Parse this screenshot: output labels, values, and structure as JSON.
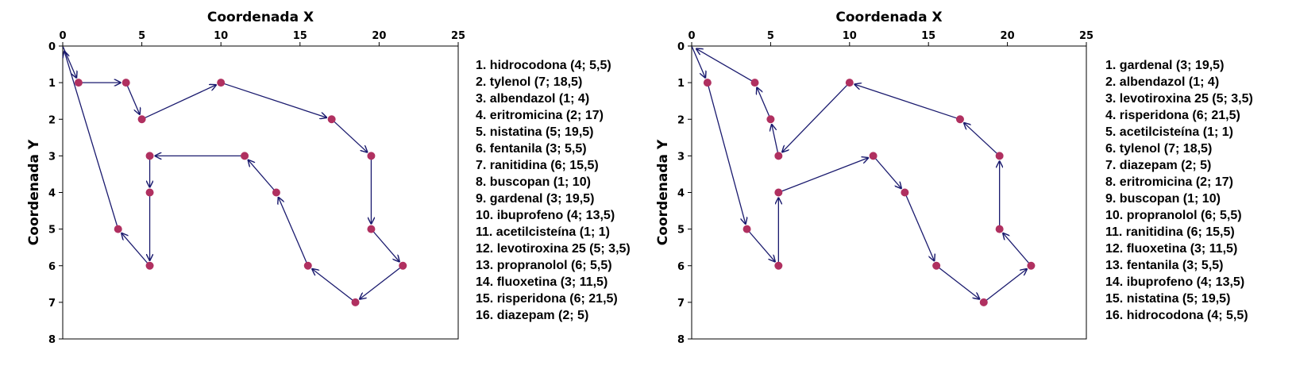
{
  "chart_data": [
    {
      "type": "line",
      "xlabel": "Coordenada X",
      "ylabel": "Coordenada Y",
      "xlim": [
        0,
        25
      ],
      "ylim": [
        8,
        0
      ],
      "x_axis_position": "top",
      "y_inverted": true,
      "grid": false,
      "xticks": [
        0,
        5,
        10,
        15,
        20,
        25
      ],
      "yticks": [
        0,
        1,
        2,
        3,
        4,
        5,
        6,
        7,
        8
      ],
      "point_color": "#b03060",
      "arrow_color": "#1a1a6e",
      "route": [
        [
          0,
          0
        ],
        [
          1,
          1
        ],
        [
          4,
          1
        ],
        [
          5,
          2
        ],
        [
          10,
          1
        ],
        [
          17,
          2
        ],
        [
          19.5,
          3
        ],
        [
          19.5,
          5
        ],
        [
          21.5,
          6
        ],
        [
          18.5,
          7
        ],
        [
          15.5,
          6
        ],
        [
          13.5,
          4
        ],
        [
          11.5,
          3
        ],
        [
          5.5,
          3
        ],
        [
          5.5,
          4
        ],
        [
          5.5,
          6
        ],
        [
          3.5,
          5
        ],
        [
          0,
          0
        ]
      ],
      "legend": [
        "1. hidrocodona (4; 5,5)",
        "2. tylenol (7; 18,5)",
        "3. albendazol (1; 4)",
        "4. eritromicina (2; 17)",
        "5. nistatina (5; 19,5)",
        "6. fentanila (3; 5,5)",
        "7. ranitidina (6; 15,5)",
        "8. buscopan (1; 10)",
        "9. gardenal (3; 19,5)",
        "10. ibuprofeno (4; 13,5)",
        "11. acetilcisteína (1; 1)",
        "12. levotiroxina 25 (5; 3,5)",
        "13. propranolol (6; 5,5)",
        "14. fluoxetina (3; 11,5)",
        "15. risperidona (6; 21,5)",
        "16. diazepam (2; 5)"
      ]
    },
    {
      "type": "line",
      "xlabel": "Coordenada X",
      "ylabel": "Coordenada Y",
      "xlim": [
        0,
        25
      ],
      "ylim": [
        8,
        0
      ],
      "x_axis_position": "top",
      "y_inverted": true,
      "grid": false,
      "xticks": [
        0,
        5,
        10,
        15,
        20,
        25
      ],
      "yticks": [
        0,
        1,
        2,
        3,
        4,
        5,
        6,
        7,
        8
      ],
      "point_color": "#b03060",
      "arrow_color": "#1a1a6e",
      "route": [
        [
          0,
          0
        ],
        [
          1,
          1
        ],
        [
          3.5,
          5
        ],
        [
          5.5,
          6
        ],
        [
          5.5,
          4
        ],
        [
          11.5,
          3
        ],
        [
          13.5,
          4
        ],
        [
          15.5,
          6
        ],
        [
          18.5,
          7
        ],
        [
          21.5,
          6
        ],
        [
          19.5,
          5
        ],
        [
          19.5,
          3
        ],
        [
          17,
          2
        ],
        [
          10,
          1
        ],
        [
          5.5,
          3
        ],
        [
          5,
          2
        ],
        [
          4,
          1
        ],
        [
          0,
          0
        ]
      ],
      "legend": [
        "1. gardenal (3; 19,5)",
        "2. albendazol (1; 4)",
        "3. levotiroxina 25 (5; 3,5)",
        "4. risperidona (6; 21,5)",
        "5. acetilcisteína (1; 1)",
        "6. tylenol (7; 18,5)",
        "7. diazepam (2; 5)",
        "8. eritromicina (2; 17)",
        "9. buscopan (1; 10)",
        "10. propranolol (6; 5,5)",
        "11. ranitidina (6; 15,5)",
        "12. fluoxetina (3; 11,5)",
        "13. fentanila (3; 5,5)",
        "14. ibuprofeno (4; 13,5)",
        "15. nistatina (5; 19,5)",
        "16. hidrocodona (4; 5,5)"
      ]
    }
  ]
}
